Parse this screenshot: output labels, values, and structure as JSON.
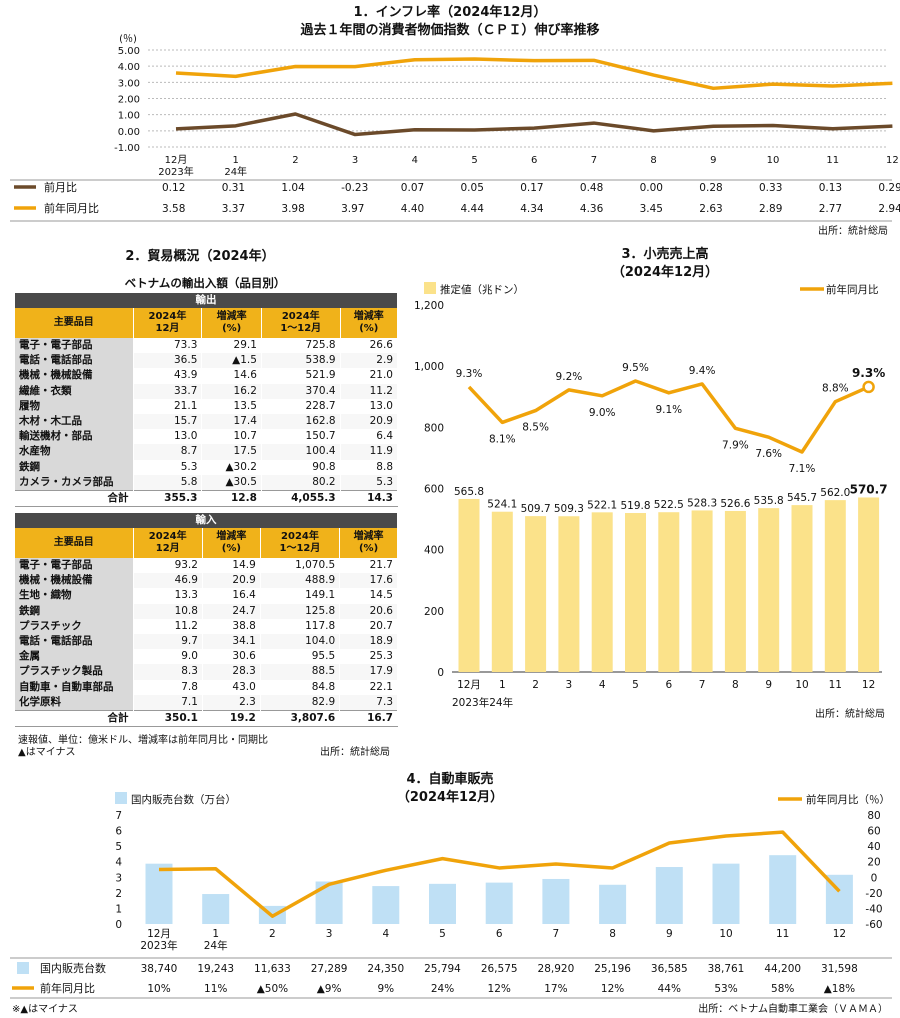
{
  "inflation": {
    "title1": "1．インフレ率（2024年12月）",
    "title2": "過去１年間の消費者物価指数（ＣＰＩ）伸び率推移",
    "unit": "(％)",
    "source": "出所：統計総局",
    "colors": {
      "mom": "#6b4a2a",
      "yoy": "#f0a30a"
    }
  },
  "trade": {
    "title": "2．貿易概況（2024年）",
    "subtitle": "ベトナムの輸出入額（品目別）",
    "export_label": "輸出",
    "import_label": "輸入",
    "headers": [
      "主要品目",
      "2024年\n12月",
      "増減率\n(%)",
      "2024年\n1～12月",
      "増減率\n(%)"
    ],
    "exports": [
      [
        "電子・電子部品",
        "73.3",
        "29.1",
        "725.8",
        "26.6"
      ],
      [
        "電話・電話部品",
        "36.5",
        "▲1.5",
        "538.9",
        "2.9"
      ],
      [
        "機械・機械設備",
        "43.9",
        "14.6",
        "521.9",
        "21.0"
      ],
      [
        "繊維・衣類",
        "33.7",
        "16.2",
        "370.4",
        "11.2"
      ],
      [
        "履物",
        "21.1",
        "13.5",
        "228.7",
        "13.0"
      ],
      [
        "木材・木工品",
        "15.7",
        "17.4",
        "162.8",
        "20.9"
      ],
      [
        "輸送機材・部品",
        "13.0",
        "10.7",
        "150.7",
        "6.4"
      ],
      [
        "水産物",
        "8.7",
        "17.5",
        "100.4",
        "11.9"
      ],
      [
        "鉄鋼",
        "5.3",
        "▲30.2",
        "90.8",
        "8.8"
      ],
      [
        "カメラ・カメラ部品",
        "5.8",
        "▲30.5",
        "80.2",
        "5.3"
      ]
    ],
    "export_total": [
      "合計",
      "355.3",
      "12.8",
      "4,055.3",
      "14.3"
    ],
    "imports": [
      [
        "電子・電子部品",
        "93.2",
        "14.9",
        "1,070.5",
        "21.7"
      ],
      [
        "機械・機械設備",
        "46.9",
        "20.9",
        "488.9",
        "17.6"
      ],
      [
        "生地・織物",
        "13.3",
        "16.4",
        "149.1",
        "14.5"
      ],
      [
        "鉄鋼",
        "10.8",
        "24.7",
        "125.8",
        "20.6"
      ],
      [
        "プラスチック",
        "11.2",
        "38.8",
        "117.8",
        "20.7"
      ],
      [
        "電話・電話部品",
        "9.7",
        "34.1",
        "104.0",
        "18.9"
      ],
      [
        "金属",
        "9.0",
        "30.6",
        "95.5",
        "25.3"
      ],
      [
        "プラスチック製品",
        "8.3",
        "28.3",
        "88.5",
        "17.9"
      ],
      [
        "自動車・自動車部品",
        "7.8",
        "43.0",
        "84.8",
        "22.1"
      ],
      [
        "化学原料",
        "7.1",
        "2.3",
        "82.9",
        "7.3"
      ]
    ],
    "import_total": [
      "合計",
      "350.1",
      "19.2",
      "3,807.6",
      "16.7"
    ],
    "note1": "速報値、単位：億米ドル、増減率は前年同月比・同期比",
    "note2": "▲はマイナス",
    "source": "出所：統計総局"
  },
  "retail": {
    "title1": "3．小売売上高",
    "title2": "（2024年12月）",
    "source": "出所：統計総局",
    "colors": {
      "bar": "#fbe28a",
      "line": "#f0a30a"
    }
  },
  "auto": {
    "title1": "4．自動車販売",
    "title2": "（2024年12月）",
    "note": "※▲はマイナス",
    "source": "出所：ベトナム自動車工業会（ＶＡＭＡ）",
    "colors": {
      "bar": "#bfe0f5",
      "line": "#f0a30a"
    }
  },
  "chart_data": [
    {
      "type": "line",
      "title": "過去１年間の消費者物価指数（ＣＰＩ）伸び率推移",
      "categories": [
        "12月\n2023年",
        "1\n24年",
        "2",
        "3",
        "4",
        "5",
        "6",
        "7",
        "8",
        "9",
        "10",
        "11",
        "12"
      ],
      "ylabel": "(％)",
      "ylim": [
        -1.0,
        5.0
      ],
      "yticks": [
        "5.00",
        "4.00",
        "3.00",
        "2.00",
        "1.00",
        "0.00",
        "-1.00"
      ],
      "grid": true,
      "series": [
        {
          "name": "前月比",
          "values": [
            0.12,
            0.31,
            1.04,
            -0.23,
            0.07,
            0.05,
            0.17,
            0.48,
            0.0,
            0.28,
            0.33,
            0.13,
            0.29
          ],
          "labels": [
            "0.12",
            "0.31",
            "1.04",
            "-0.23",
            "0.07",
            "0.05",
            "0.17",
            "0.48",
            "0.00",
            "0.28",
            "0.33",
            "0.13",
            "0.29"
          ]
        },
        {
          "name": "前年同月比",
          "values": [
            3.58,
            3.37,
            3.98,
            3.97,
            4.4,
            4.44,
            4.34,
            4.36,
            3.45,
            2.63,
            2.89,
            2.77,
            2.94
          ],
          "labels": [
            "3.58",
            "3.37",
            "3.98",
            "3.97",
            "4.40",
            "4.44",
            "4.34",
            "4.36",
            "3.45",
            "2.63",
            "2.89",
            "2.77",
            "2.94"
          ]
        }
      ]
    },
    {
      "type": "bar",
      "title": "小売売上高（2024年12月）",
      "categories": [
        "12月\n2023年24年",
        "1",
        "2",
        "3",
        "4",
        "5",
        "6",
        "7",
        "8",
        "9",
        "10",
        "11",
        "12"
      ],
      "ylim": [
        0,
        1200
      ],
      "yticks": [
        "1,200",
        "1,000",
        "800",
        "600",
        "400",
        "200",
        "0"
      ],
      "series": [
        {
          "name": "推定値（兆ドン）",
          "values": [
            565.8,
            524.1,
            509.7,
            509.3,
            522.1,
            519.8,
            522.5,
            528.3,
            526.6,
            535.8,
            545.7,
            562.0,
            570.7
          ],
          "labels": [
            "565.8",
            "524.1",
            "509.7",
            "509.3",
            "522.1",
            "519.8",
            "522.5",
            "528.3",
            "526.6",
            "535.8",
            "545.7",
            "562.0",
            "570.7"
          ]
        },
        {
          "name": "前年同月比",
          "type": "line",
          "values": [
            9.3,
            8.1,
            8.5,
            9.2,
            9.0,
            9.5,
            9.1,
            9.4,
            7.9,
            7.6,
            7.1,
            8.8,
            9.3
          ],
          "labels": [
            "9.3%",
            "8.1%",
            "8.5%",
            "9.2%",
            "9.0%",
            "9.5%",
            "9.1%",
            "9.4%",
            "7.9%",
            "7.6%",
            "7.1%",
            "8.8%",
            "9.3%"
          ]
        }
      ]
    },
    {
      "type": "bar",
      "title": "自動車販売（2024年12月）",
      "categories": [
        "12月\n2023年",
        "1\n24年",
        "2",
        "3",
        "4",
        "5",
        "6",
        "7",
        "8",
        "9",
        "10",
        "11",
        "12"
      ],
      "ylim": [
        0,
        7
      ],
      "yticks": [
        "7",
        "6",
        "5",
        "4",
        "3",
        "2",
        "1",
        "0"
      ],
      "y2lim": [
        -60,
        80
      ],
      "y2ticks": [
        "80",
        "60",
        "40",
        "20",
        "0",
        "-20",
        "-40",
        "-60"
      ],
      "series": [
        {
          "name": "国内販売台数（万台）",
          "table_name": "国内販売台数",
          "values": [
            38740,
            19243,
            11633,
            27289,
            24350,
            25794,
            26575,
            28920,
            25196,
            36585,
            38761,
            44200,
            31598
          ],
          "labels": [
            "38,740",
            "19,243",
            "11,633",
            "27,289",
            "24,350",
            "25,794",
            "26,575",
            "28,920",
            "25,196",
            "36,585",
            "38,761",
            "44,200",
            "31,598"
          ]
        },
        {
          "name": "前年同月比（％）",
          "table_name": "前年同月比",
          "type": "line",
          "values": [
            10,
            11,
            -50,
            -9,
            9,
            24,
            12,
            17,
            12,
            44,
            53,
            58,
            -18
          ],
          "labels": [
            "10%",
            "11%",
            "▲50%",
            "▲9%",
            "9%",
            "24%",
            "12%",
            "17%",
            "12%",
            "44%",
            "53%",
            "58%",
            "▲18%"
          ]
        }
      ]
    }
  ]
}
